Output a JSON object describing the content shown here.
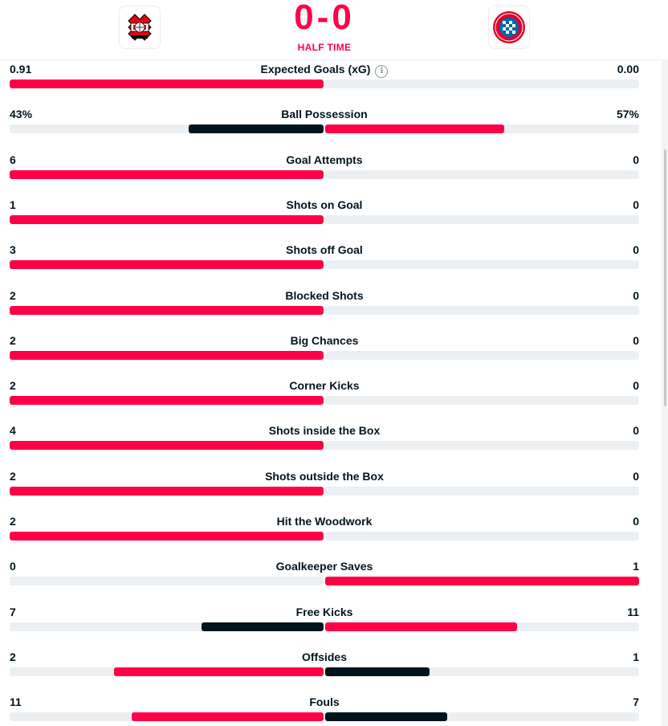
{
  "match": {
    "score": "0-0",
    "status": "HALF TIME",
    "home_team_logo": "bayer-leverkusen-logo",
    "away_team_logo": "fc-bayern-munchen-logo"
  },
  "colors": {
    "winner": "#ff0046",
    "loser": "#00141e",
    "track": "#eceff1"
  },
  "stats": [
    {
      "name": "Expected Goals (xG)",
      "home": "0.91",
      "away": "0.00",
      "home_share": 1.0,
      "away_share": 0.0,
      "info": true
    },
    {
      "name": "Ball Possession",
      "home": "43%",
      "away": "57%",
      "home_share": 0.43,
      "away_share": 0.57
    },
    {
      "name": "Goal Attempts",
      "home": "6",
      "away": "0",
      "home_share": 1.0,
      "away_share": 0.0
    },
    {
      "name": "Shots on Goal",
      "home": "1",
      "away": "0",
      "home_share": 1.0,
      "away_share": 0.0
    },
    {
      "name": "Shots off Goal",
      "home": "3",
      "away": "0",
      "home_share": 1.0,
      "away_share": 0.0
    },
    {
      "name": "Blocked Shots",
      "home": "2",
      "away": "0",
      "home_share": 1.0,
      "away_share": 0.0
    },
    {
      "name": "Big Chances",
      "home": "2",
      "away": "0",
      "home_share": 1.0,
      "away_share": 0.0
    },
    {
      "name": "Corner Kicks",
      "home": "2",
      "away": "0",
      "home_share": 1.0,
      "away_share": 0.0
    },
    {
      "name": "Shots inside the Box",
      "home": "4",
      "away": "0",
      "home_share": 1.0,
      "away_share": 0.0
    },
    {
      "name": "Shots outside the Box",
      "home": "2",
      "away": "0",
      "home_share": 1.0,
      "away_share": 0.0
    },
    {
      "name": "Hit the Woodwork",
      "home": "2",
      "away": "0",
      "home_share": 1.0,
      "away_share": 0.0
    },
    {
      "name": "Goalkeeper Saves",
      "home": "0",
      "away": "1",
      "home_share": 0.0,
      "away_share": 1.0
    },
    {
      "name": "Free Kicks",
      "home": "7",
      "away": "11",
      "home_share": 0.389,
      "away_share": 0.611
    },
    {
      "name": "Offsides",
      "home": "2",
      "away": "1",
      "home_share": 0.667,
      "away_share": 0.333
    },
    {
      "name": "Fouls",
      "home": "11",
      "away": "7",
      "home_share": 0.611,
      "away_share": 0.389
    }
  ]
}
